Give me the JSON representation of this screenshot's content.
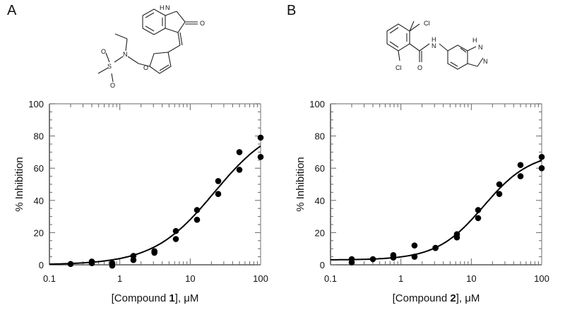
{
  "panels": [
    {
      "letter": "A",
      "compound_number": "1",
      "structure_atoms": [
        "H",
        "N",
        "O",
        "O",
        "O",
        "S",
        "N",
        "O"
      ]
    },
    {
      "letter": "B",
      "compound_number": "2",
      "structure_atoms": [
        "Cl",
        "Cl",
        "O",
        "H",
        "N",
        "H",
        "N",
        "N"
      ]
    }
  ],
  "chart_data": [
    {
      "type": "scatter",
      "xlabel_prefix": "[Compound ",
      "xlabel_bold": "1",
      "xlabel_suffix": "], μM",
      "ylabel": "% Inhibition",
      "xscale": "log",
      "xlim": [
        0.1,
        100
      ],
      "ylim": [
        0,
        100
      ],
      "x_ticks": [
        "0.1",
        "1",
        "10",
        "100"
      ],
      "y_ticks": [
        "0",
        "20",
        "40",
        "60",
        "80",
        "100"
      ],
      "grid": false,
      "series": [
        {
          "x": [
            0.2,
            0.4,
            0.4,
            0.78,
            0.78,
            1.56,
            1.56,
            3.1,
            3.1,
            6.25,
            6.25,
            12.5,
            12.5,
            25,
            25,
            50,
            50,
            100,
            100
          ],
          "y": [
            0.5,
            2,
            1,
            1,
            -0.5,
            5.5,
            3,
            8.5,
            7.5,
            21,
            16,
            34,
            28,
            52,
            44,
            70,
            59,
            79,
            67
          ]
        }
      ],
      "fit": {
        "bottom": 0,
        "top": 90,
        "ic50": 22,
        "hill": 1.0
      }
    },
    {
      "type": "scatter",
      "xlabel_prefix": "[Compound ",
      "xlabel_bold": "2",
      "xlabel_suffix": "], μM",
      "ylabel": "% Inhibition",
      "xscale": "log",
      "xlim": [
        0.1,
        100
      ],
      "ylim": [
        0,
        100
      ],
      "x_ticks": [
        "0.1",
        "1",
        "10",
        "100"
      ],
      "y_ticks": [
        "0",
        "20",
        "40",
        "60",
        "80",
        "100"
      ],
      "grid": false,
      "series": [
        {
          "x": [
            0.2,
            0.2,
            0.4,
            0.78,
            0.78,
            1.56,
            1.56,
            3.1,
            3.1,
            6.25,
            6.25,
            12.5,
            12.5,
            25,
            25,
            50,
            50,
            100,
            100
          ],
          "y": [
            3.5,
            1.5,
            3.5,
            6,
            4.5,
            12,
            5,
            10.5,
            10.5,
            19,
            17,
            34,
            29,
            50,
            44,
            62,
            55,
            67,
            60
          ]
        }
      ],
      "fit": {
        "bottom": 3,
        "top": 70,
        "ic50": 15,
        "hill": 1.3
      }
    }
  ]
}
